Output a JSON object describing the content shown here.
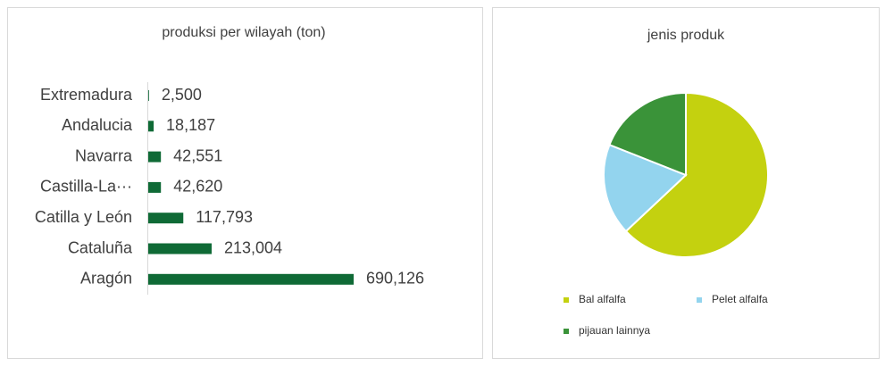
{
  "chart_data": [
    {
      "type": "hbar",
      "title": "produksi per wilayah  (ton)",
      "categories": [
        "Extremadura",
        "Andalucia",
        "Navarra",
        "Castilla-La···",
        "Catilla y León",
        "Cataluña",
        "Aragón"
      ],
      "values": [
        2500,
        18187,
        42551,
        42620,
        117793,
        213004,
        690126
      ],
      "value_labels": [
        "2,500",
        "18,187",
        "42,551",
        "42,620",
        "117,793",
        "213,004",
        "690,126"
      ],
      "color": "#0f6a36"
    },
    {
      "type": "pie",
      "title": "jenis produk",
      "categories": [
        "Bal alfalfa",
        "Pelet alfalfa",
        "pijauan lainnya"
      ],
      "values": [
        63,
        18,
        19
      ],
      "colors": [
        "#c4d10f",
        "#93d4ee",
        "#3a9339"
      ]
    }
  ]
}
